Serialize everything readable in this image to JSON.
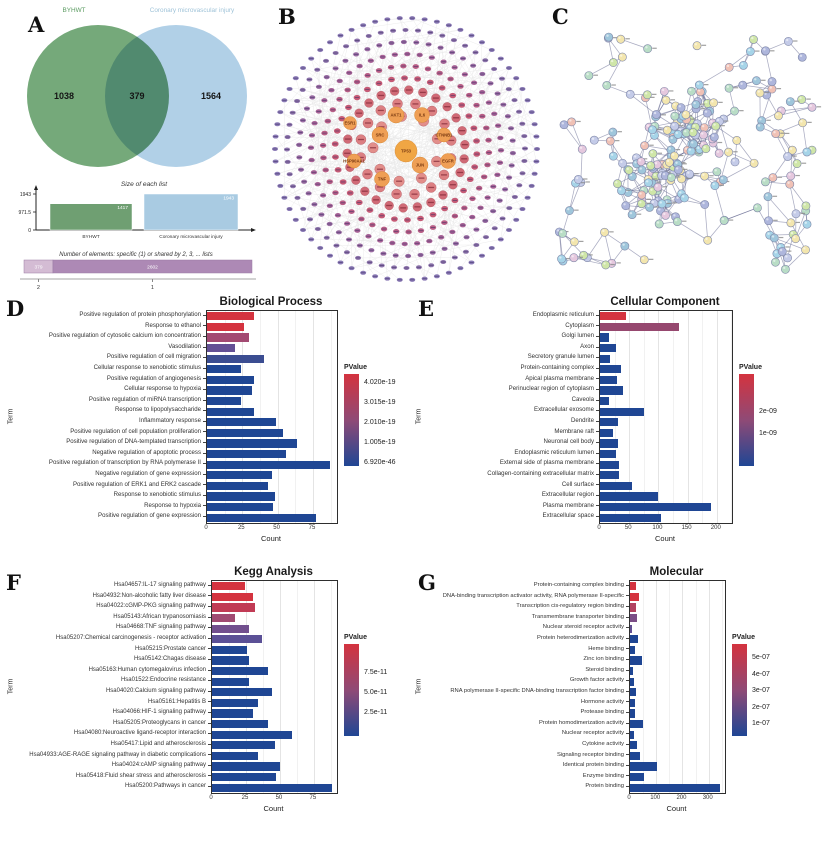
{
  "panels": {
    "A": {
      "letter": "A"
    },
    "B": {
      "letter": "B"
    },
    "C": {
      "letter": "C"
    },
    "D": {
      "letter": "D"
    },
    "E": {
      "letter": "E"
    },
    "F": {
      "letter": "F"
    },
    "G": {
      "letter": "G"
    }
  },
  "chart_data": [
    {
      "id": "venn",
      "type": "venn",
      "sets": [
        {
          "label": "BYHWT",
          "unique_value": "1038",
          "fill": "#66a06b",
          "label_color": "#5a9b60"
        },
        {
          "label": "Coronary microvascular injury",
          "unique_value": "1564",
          "fill": "#a8cbe4",
          "label_color": "#9fc3d8"
        }
      ],
      "overlap_value": "379"
    },
    {
      "id": "size_list",
      "type": "bar",
      "title": "Size of each list",
      "yticks": [
        "1943",
        "971.5",
        "0"
      ],
      "ymax": 1943,
      "categories": [
        "BYHWT",
        "Coronary microvascular injury"
      ],
      "values": [
        1417,
        1943
      ],
      "value_labels": [
        "1417",
        "1943"
      ],
      "colors": [
        "#6f9f72",
        "#a9cbe2"
      ]
    },
    {
      "id": "elements",
      "type": "stacked_bar",
      "title": "Number of elements: specific (1) or shared by 2, 3, ... lists",
      "segments": [
        {
          "value": 379,
          "label": "379",
          "tick": "2",
          "color": "#d4bcd4"
        },
        {
          "value": 2602,
          "label": "2602",
          "tick": "1",
          "color": "#ad89b5"
        }
      ]
    },
    {
      "id": "B",
      "type": "network_radial",
      "hubs": [
        "TP53",
        "JUN",
        "SRC",
        "AKT1",
        "IL6",
        "CTNNB1",
        "EGFR",
        "TNF",
        "HSP90AA1",
        "ESR1"
      ],
      "hub_color": "#f0a644",
      "hub_label_color": "#7a3a12",
      "ring_colors": [
        "#8b7ab6",
        "#8e74ac",
        "#9a6ba2",
        "#a96397",
        "#b95e86",
        "#c65b76",
        "#d06a76",
        "#dc7f82",
        "#e28e8a"
      ]
    },
    {
      "id": "C",
      "type": "network_ppi",
      "palette": [
        "#aeb6dc",
        "#b9ddc6",
        "#a6d4e8",
        "#f0c1b5",
        "#f3e6ae",
        "#cfe6a8",
        "#e5c8de",
        "#9fc6db",
        "#c4cbe8"
      ],
      "edge_color": "#4e5280"
    },
    {
      "id": "D",
      "type": "bar",
      "title": "Biological Process",
      "xlabel": "Count",
      "ylabel": "Term",
      "xticks": [
        0,
        25,
        50,
        75
      ],
      "xmax": 92,
      "categories": [
        "Positive regulation of protein phosphorylation",
        "Response to ethanol",
        "Positive regulation of cytosolic calcium ion concentration",
        "Vasodilation",
        "Positive regulation of cell migration",
        "Cellular response to xenobiotic stimulus",
        "Positive regulation of angiogenesis",
        "Cellular response to hypoxia",
        "Positive regulation of miRNA transcription",
        "Response to lipopolysaccharide",
        "Inflammatory response",
        "Positive regulation of cell population proliferation",
        "Positive regulation of DNA-templated transcription",
        "Negative regulation of apoptotic process",
        "Positive regulation of transcription by RNA polymerase II",
        "Negative regulation of gene expression",
        "Positive regulation of ERK1 and ERK2 cascade",
        "Response to xenobiotic stimulus",
        "Response to hypoxia",
        "Positive regulation of gene expression"
      ],
      "values": [
        33,
        26,
        30,
        20,
        40,
        24,
        33,
        32,
        24,
        33,
        49,
        54,
        64,
        56,
        87,
        46,
        43,
        48,
        47,
        77
      ],
      "colors": [
        "#d4333f",
        "#d4333f",
        "#a34a72",
        "#635095",
        "#3b4d91",
        "#1f4694",
        "#1f4694",
        "#1f4694",
        "#1f4694",
        "#1f4694",
        "#1f4694",
        "#1f4694",
        "#1f4694",
        "#1f4694",
        "#1f4694",
        "#1f4694",
        "#1f4694",
        "#1f4694",
        "#1f4694",
        "#1f4694"
      ],
      "legend": {
        "title": "PValue",
        "labels": [
          "4.020e-19",
          "3.015e-19",
          "2.010e-19",
          "1.005e-19",
          "6.920e-46"
        ],
        "fractions": [
          0.06,
          0.28,
          0.5,
          0.72,
          0.94
        ]
      }
    },
    {
      "id": "E",
      "type": "bar",
      "title": "Cellular Component",
      "xlabel": "Count",
      "ylabel": "Term",
      "xticks": [
        0,
        50,
        100,
        150,
        200
      ],
      "xmax": 226,
      "categories": [
        "Endoplasmic reticulum",
        "Cytoplasm",
        "Golgi lumen",
        "Axon",
        "Secretory granule lumen",
        "Protein-containing complex",
        "Apical plasma membrane",
        "Perinuclear region of cytoplasm",
        "Caveola",
        "Extracellular exosome",
        "Dendrite",
        "Membrane raft",
        "Neuronal cell body",
        "Endoplasmic reticulum lumen",
        "External side of plasma membrane",
        "Collagen-containing extracellular matrix",
        "Cell surface",
        "Extracellular region",
        "Plasma membrane",
        "Extracellular space"
      ],
      "values": [
        44,
        135,
        15,
        27,
        17,
        36,
        29,
        40,
        15,
        75,
        31,
        22,
        30,
        27,
        32,
        32,
        55,
        100,
        190,
        105
      ],
      "colors": [
        "#d4333f",
        "#96486f",
        "#1f4694",
        "#1f4694",
        "#1f4694",
        "#1f4694",
        "#1f4694",
        "#1f4694",
        "#1f4694",
        "#1f4694",
        "#1f4694",
        "#1f4694",
        "#1f4694",
        "#1f4694",
        "#1f4694",
        "#1f4694",
        "#1f4694",
        "#1f4694",
        "#1f4694",
        "#1f4694"
      ],
      "legend": {
        "title": "PValue",
        "labels": [
          "2e-09",
          "1e-09"
        ],
        "fractions": [
          0.38,
          0.62
        ]
      }
    },
    {
      "id": "F",
      "type": "bar",
      "title": "Kegg Analysis",
      "xlabel": "Count",
      "ylabel": "Term",
      "xticks": [
        0,
        25,
        50,
        75
      ],
      "xmax": 92,
      "categories": [
        "Hsa04657:IL-17 signaling pathway",
        "Hsa04932:Non-alcoholic fatty liver disease",
        "Hsa04022:cGMP-PKG signaling pathway",
        "Hsa05143:African trypanosomiasis",
        "Hsa04668:TNF signaling pathway",
        "Hsa05207:Chemical carcinogenesis - receptor activation",
        "Hsa05215:Prostate cancer",
        "Hsa05142:Chagas disease",
        "Hsa05163:Human cytomegalovirus infection",
        "Hsa01522:Endocrine resistance",
        "Hsa04020:Calcium signaling pathway",
        "Hsa05161:Hepatitis B",
        "Hsa04066:HIF-1 signaling pathway",
        "Hsa05205:Proteoglycans in cancer",
        "Hsa04080:Neuroactive ligand-receptor interaction",
        "Hsa05417:Lipid and atherosclerosis",
        "Hsa04933:AGE-RAGE signaling pathway in diabetic complications",
        "Hsa04024:cAMP signaling pathway",
        "Hsa05418:Fluid shear stress and atherosclerosis",
        "Hsa05200:Pathways in cancer"
      ],
      "values": [
        24,
        30,
        32,
        17,
        27,
        37,
        26,
        27,
        41,
        27,
        44,
        34,
        30,
        41,
        59,
        46,
        34,
        50,
        47,
        88
      ],
      "colors": [
        "#d4333f",
        "#d4333f",
        "#c13b55",
        "#a04a72",
        "#714f8e",
        "#5b5096",
        "#1f4694",
        "#1f4694",
        "#1f4694",
        "#1f4694",
        "#1f4694",
        "#1f4694",
        "#1f4694",
        "#1f4694",
        "#1f4694",
        "#1f4694",
        "#1f4694",
        "#1f4694",
        "#1f4694",
        "#1f4694"
      ],
      "legend": {
        "title": "PValue",
        "labels": [
          "7.5e-11",
          "5.0e-11",
          "2.5e-11"
        ],
        "fractions": [
          0.28,
          0.5,
          0.72
        ]
      }
    },
    {
      "id": "G",
      "type": "bar",
      "title": "Molecular Function",
      "xlabel": "Count",
      "ylabel": "Term",
      "xticks": [
        0,
        100,
        200,
        300
      ],
      "xmax": 362,
      "categories": [
        "Protein-containing complex binding",
        "DNA-binding transcription activator activity, RNA polymerase II-specific",
        "Transcription cis-regulatory region binding",
        "Transmembrane transporter binding",
        "Nuclear steroid receptor activity",
        "Protein heterodimerization activity",
        "Heme binding",
        "Zinc ion binding",
        "Steroid binding",
        "Growth factor activity",
        "RNA polymerase II-specific DNA-binding transcription factor binding",
        "Hormone activity",
        "Protease binding",
        "Protein homodimerization activity",
        "Nuclear receptor activity",
        "Cytokine activity",
        "Signaling receptor binding",
        "Identical protein binding",
        "Enzyme binding",
        "Protein binding"
      ],
      "values": [
        24,
        34,
        24,
        26,
        8,
        31,
        18,
        47,
        10,
        16,
        24,
        18,
        19,
        51,
        14,
        27,
        38,
        104,
        54,
        344
      ],
      "colors": [
        "#d4333f",
        "#d4333f",
        "#b24260",
        "#7b4d86",
        "#614f93",
        "#1f4694",
        "#1f4694",
        "#1f4694",
        "#1f4694",
        "#1f4694",
        "#1f4694",
        "#1f4694",
        "#1f4694",
        "#1f4694",
        "#1f4694",
        "#1f4694",
        "#1f4694",
        "#1f4694",
        "#1f4694",
        "#1f4694"
      ],
      "legend": {
        "title": "PValue",
        "labels": [
          "5e-07",
          "4e-07",
          "3e-07",
          "2e-07",
          "1e-07"
        ],
        "fractions": [
          0.12,
          0.3,
          0.48,
          0.66,
          0.84
        ]
      }
    }
  ]
}
